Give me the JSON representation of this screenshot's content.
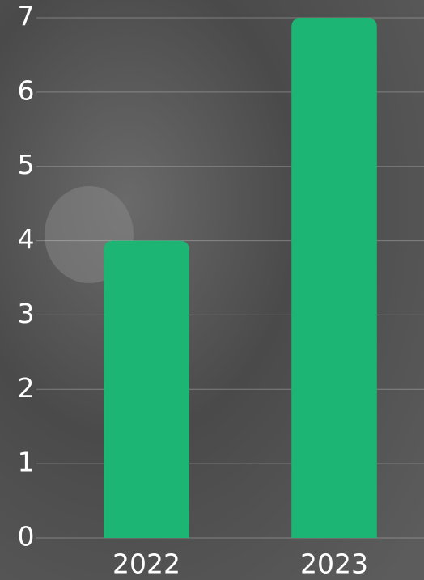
{
  "chart_data": {
    "type": "bar",
    "categories": [
      "2022",
      "2023"
    ],
    "values": [
      4,
      7
    ],
    "color": "#1db574",
    "ylim": [
      0,
      7
    ],
    "yticks": [
      0,
      1,
      2,
      3,
      4,
      5,
      6,
      7
    ],
    "grid": true
  }
}
